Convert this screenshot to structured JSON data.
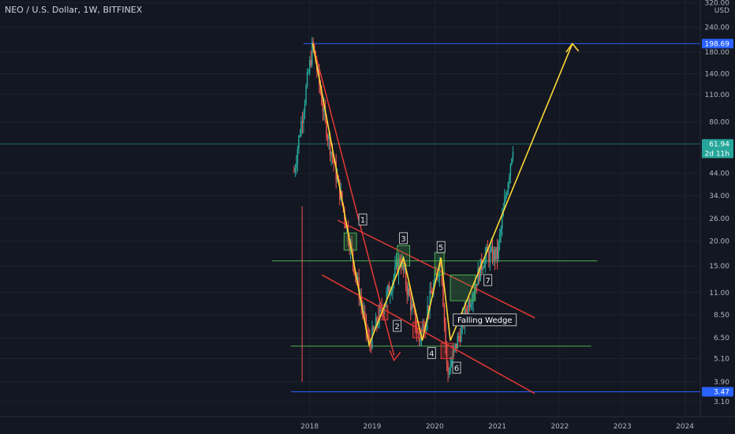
{
  "header": {
    "title": "NEO / U.S. Dollar, 1W, BITFINEX"
  },
  "chart_data": {
    "type": "candlestick",
    "symbol": "NEO / U.S. Dollar",
    "interval": "1W",
    "exchange": "BITFINEX",
    "y_scale": "log",
    "ylim": [
      2.6,
      330
    ],
    "currency_label": "USD",
    "y_ticks": [
      {
        "v": 320,
        "label": "320.00"
      },
      {
        "v": 240,
        "label": "240.00"
      },
      {
        "v": 180,
        "label": "180.00"
      },
      {
        "v": 140,
        "label": "140.00"
      },
      {
        "v": 110,
        "label": "110.00"
      },
      {
        "v": 80,
        "label": "80.00"
      },
      {
        "v": 44,
        "label": "44.00"
      },
      {
        "v": 34,
        "label": "34.00"
      },
      {
        "v": 26,
        "label": "26.00"
      },
      {
        "v": 20,
        "label": "20.00"
      },
      {
        "v": 15,
        "label": "15.00"
      },
      {
        "v": 11,
        "label": "11.00"
      },
      {
        "v": 8.5,
        "label": "8.50"
      },
      {
        "v": 6.5,
        "label": "6.50"
      },
      {
        "v": 5.1,
        "label": "5.10"
      },
      {
        "v": 3.9,
        "label": "3.90"
      },
      {
        "v": 3.1,
        "label": "3.10"
      }
    ],
    "x_ticks": [
      {
        "t": 2018,
        "label": "2018"
      },
      {
        "t": 2019,
        "label": "2019"
      },
      {
        "t": 2020,
        "label": "2020"
      },
      {
        "t": 2021,
        "label": "2021"
      },
      {
        "t": 2022,
        "label": "2022"
      },
      {
        "t": 2023,
        "label": "2023"
      },
      {
        "t": 2024,
        "label": "2024"
      }
    ],
    "xlim": [
      2013.05,
      2024.8
    ],
    "price_tags": [
      {
        "v": 198.69,
        "label": "198.69",
        "color": "#2962ff"
      },
      {
        "v": 61.94,
        "label": "61.94",
        "sublabel": "2d 11h",
        "color": "#26a69a"
      },
      {
        "v": 3.47,
        "label": "3.47",
        "color": "#2962ff"
      }
    ],
    "key_points": [
      {
        "t": 2017.75,
        "v": 45
      },
      {
        "t": 2018.05,
        "v": 198.69
      },
      {
        "t": 2018.25,
        "v": 80
      },
      {
        "t": 2018.55,
        "v": 28
      },
      {
        "t": 2018.95,
        "v": 6.0
      },
      {
        "t": 2019.45,
        "v": 16.5
      },
      {
        "t": 2019.75,
        "v": 6.3
      },
      {
        "t": 2020.1,
        "v": 16.5
      },
      {
        "t": 2020.2,
        "v": 4.2
      },
      {
        "t": 2020.55,
        "v": 10
      },
      {
        "t": 2020.8,
        "v": 17
      },
      {
        "t": 2021.0,
        "v": 17
      },
      {
        "t": 2021.25,
        "v": 61.94
      }
    ],
    "horizontal_lines": [
      {
        "v": 198.69,
        "color": "#2962ff"
      },
      {
        "v": 61.94,
        "color": "#26a69a"
      },
      {
        "v": 15.9,
        "color": "#4caf50"
      },
      {
        "v": 5.9,
        "color": "#4caf50"
      },
      {
        "v": 3.47,
        "color": "#2962ff"
      }
    ],
    "wave_labels": [
      {
        "label": "1",
        "t": 2018.85,
        "v": 25.5
      },
      {
        "label": "2",
        "t": 2019.4,
        "v": 7.4
      },
      {
        "label": "3",
        "t": 2019.5,
        "v": 20.5
      },
      {
        "label": "4",
        "t": 2019.95,
        "v": 5.4
      },
      {
        "label": "5",
        "t": 2020.1,
        "v": 18.5
      },
      {
        "label": "6",
        "t": 2020.35,
        "v": 4.55
      },
      {
        "label": "7",
        "t": 2020.85,
        "v": 12.6
      }
    ],
    "annotations": [
      {
        "text": "Falling Wedge",
        "t": 2020.8,
        "v": 7.9
      }
    ]
  }
}
